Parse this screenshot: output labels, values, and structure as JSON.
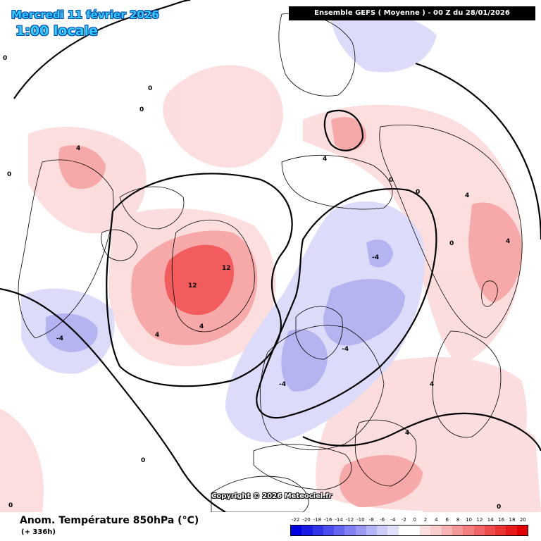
{
  "header": {
    "date_line": "Mercredi 11 février 2026",
    "time_line": "1:00 locale",
    "model_run": "Ensemble GEFS  ( Moyenne )  -  00 Z du 28/01/2026"
  },
  "map": {
    "copyright": "Copyright © 2026 Meteociel.fr",
    "colors": {
      "strong_warm": "#f25c5c",
      "warm": "#f7a8a8",
      "light_warm": "#fcdcdc",
      "neutral": "#ffffff",
      "light_cold": "#dcdcfa",
      "cold": "#b4b4f0",
      "coastline": "#000000"
    },
    "contour_labels": [
      {
        "text": "12",
        "value": 12
      },
      {
        "text": "12",
        "value": 12
      },
      {
        "text": "4",
        "value": 4
      },
      {
        "text": "4",
        "value": 4
      },
      {
        "text": "4",
        "value": 4
      },
      {
        "text": "4",
        "value": 4
      },
      {
        "text": "4",
        "value": 4
      },
      {
        "text": "4",
        "value": 4
      },
      {
        "text": "4",
        "value": 4
      },
      {
        "text": "4",
        "value": 4
      },
      {
        "text": "-4",
        "value": -4
      },
      {
        "text": "-4",
        "value": -4
      },
      {
        "text": "-4",
        "value": -4
      },
      {
        "text": "-4",
        "value": -4
      },
      {
        "text": "0",
        "value": 0
      },
      {
        "text": "0",
        "value": 0
      },
      {
        "text": "0",
        "value": 0
      },
      {
        "text": "0",
        "value": 0
      },
      {
        "text": "0",
        "value": 0
      },
      {
        "text": "0",
        "value": 0
      },
      {
        "text": "0",
        "value": 0
      },
      {
        "text": "0",
        "value": 0
      },
      {
        "text": "0",
        "value": 0
      },
      {
        "text": "0",
        "value": 0
      }
    ]
  },
  "footer": {
    "product_title": "Anom. Température 850hPa (°C)",
    "lead_time": "(+ 336h)"
  },
  "color_scale": {
    "ticks": [
      "-22",
      "-20",
      "-18",
      "-16",
      "-14",
      "-12",
      "-10",
      "-8",
      "-6",
      "-4",
      "-2",
      "0",
      "2",
      "4",
      "6",
      "8",
      "10",
      "12",
      "14",
      "16",
      "18",
      "20"
    ],
    "colors": [
      "#0000e0",
      "#1a1ae6",
      "#3333ea",
      "#4d4dee",
      "#6666f0",
      "#8080f2",
      "#9999f4",
      "#b3b3f7",
      "#ccccf9",
      "#e0e0fb",
      "#ffffff",
      "#ffffff",
      "#fbe0e0",
      "#f9cccc",
      "#f7b3b3",
      "#f49999",
      "#f28080",
      "#f06666",
      "#ee4d4d",
      "#ea3333",
      "#e61a1a",
      "#e00000"
    ]
  }
}
